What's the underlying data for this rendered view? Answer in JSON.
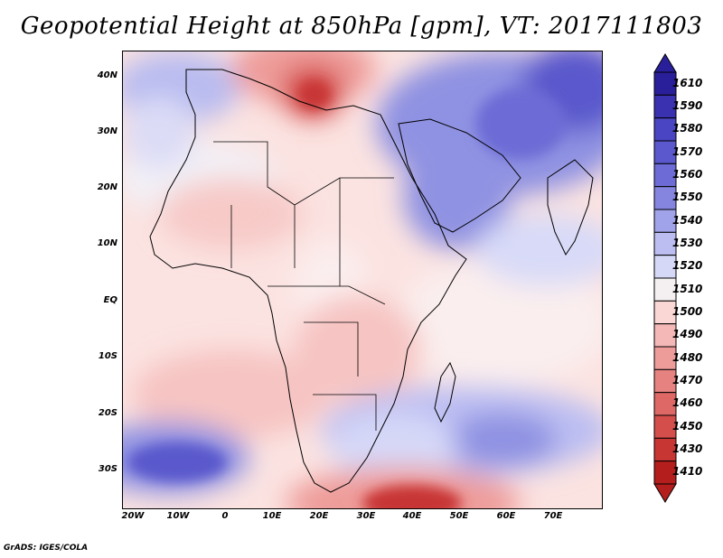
{
  "title": "Geopotential Height at 850hPa [gpm], VT: 2017111803",
  "credit": "GrADS: IGES/COLA",
  "map": {
    "lat_labels": [
      "40N",
      "30N",
      "20N",
      "10N",
      "EQ",
      "10S",
      "20S",
      "30S"
    ],
    "lon_labels": [
      "20W",
      "10W",
      "0",
      "10E",
      "20E",
      "30E",
      "40E",
      "50E",
      "60E",
      "70E"
    ]
  },
  "colorbar": {
    "levels": [
      "1610",
      "1590",
      "1580",
      "1570",
      "1560",
      "1550",
      "1540",
      "1530",
      "1520",
      "1510",
      "1500",
      "1490",
      "1480",
      "1470",
      "1460",
      "1450",
      "1430",
      "1410"
    ],
    "colors": [
      "#2a1f9a",
      "#3a31b0",
      "#4a45c2",
      "#5a58cc",
      "#6d6cd6",
      "#8585e0",
      "#a0a2ea",
      "#bcbef2",
      "#d6d8f8",
      "#f4f0f2",
      "#fad6d4",
      "#f4b8b6",
      "#ee9c9a",
      "#e68280",
      "#de6866",
      "#d44e4c",
      "#c83634",
      "#b41e1c"
    ]
  }
}
